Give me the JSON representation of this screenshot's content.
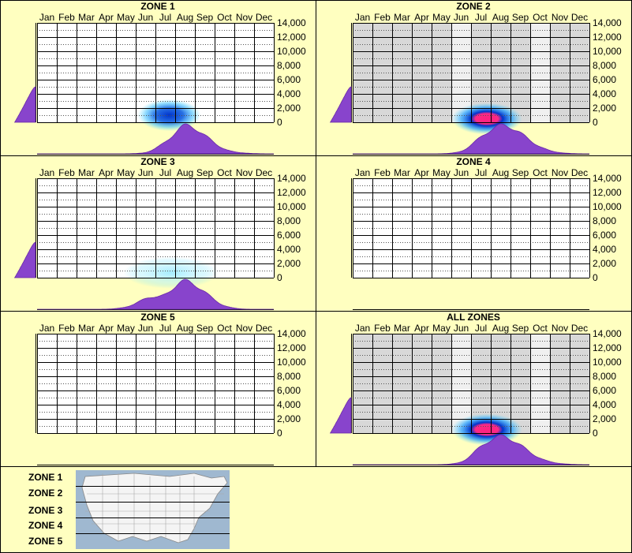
{
  "months": [
    "Jan",
    "Feb",
    "Mar",
    "Apr",
    "May",
    "Jun",
    "Jul",
    "Aug",
    "Sep",
    "Oct",
    "Nov",
    "Dec"
  ],
  "y_ticks": [
    0,
    2000,
    4000,
    6000,
    8000,
    10000,
    12000,
    14000
  ],
  "y_tick_labels": [
    "0",
    "2,000",
    "4,000",
    "6,000",
    "8,000",
    "10,000",
    "12,000",
    "14,000"
  ],
  "colors": {
    "background": "#ffffc0",
    "grid_bg_plain": "#ffffff",
    "grid_bg_shaded": "#d8d8d8",
    "grid_bg_light": "#f0f0f0",
    "density_fill": "#8844cc",
    "heat_low": "#60e0ff",
    "heat_mid": "#0033cc",
    "heat_high": "#ff2080"
  },
  "chart_data": [
    {
      "type": "heatmap",
      "title": "ZONE 1",
      "x_labels": [
        "Jan",
        "Feb",
        "Mar",
        "Apr",
        "May",
        "Jun",
        "Jul",
        "Aug",
        "Sep",
        "Oct",
        "Nov",
        "Dec"
      ],
      "ylim": [
        0,
        14000
      ],
      "shaded_months": [],
      "hotspot": {
        "month": 7.2,
        "elevation": 1000,
        "intensity": 0.55,
        "spread_months": 1.6
      },
      "month_density": [
        0,
        0,
        0,
        0,
        0,
        0.02,
        0.35,
        1.0,
        0.6,
        0.12,
        0.02,
        0
      ],
      "elevation_density": [
        0.55,
        0.2,
        0.02,
        0,
        0,
        0,
        0,
        0
      ]
    },
    {
      "type": "heatmap",
      "title": "ZONE 2",
      "x_labels": [
        "Jan",
        "Feb",
        "Mar",
        "Apr",
        "May",
        "Jun",
        "Jul",
        "Aug",
        "Sep",
        "Oct",
        "Nov",
        "Dec"
      ],
      "ylim": [
        0,
        14000
      ],
      "shaded_months": [
        1,
        2,
        3,
        4,
        5,
        7,
        8,
        9,
        11,
        12
      ],
      "hotspot": {
        "month": 7.3,
        "elevation": 500,
        "intensity": 1.0,
        "spread_months": 1.8
      },
      "month_density": [
        0,
        0,
        0,
        0,
        0,
        0.05,
        0.55,
        1.0,
        0.7,
        0.2,
        0.03,
        0
      ],
      "elevation_density": [
        0.55,
        0.2,
        0.02,
        0,
        0,
        0,
        0,
        0
      ]
    },
    {
      "type": "heatmap",
      "title": "ZONE 3",
      "x_labels": [
        "Jan",
        "Feb",
        "Mar",
        "Apr",
        "May",
        "Jun",
        "Jul",
        "Aug",
        "Sep",
        "Oct",
        "Nov",
        "Dec"
      ],
      "ylim": [
        0,
        14000
      ],
      "shaded_months": [],
      "hotspot": {
        "month": 7.3,
        "elevation": 700,
        "intensity": 0.2,
        "spread_months": 2.4
      },
      "month_density": [
        0,
        0,
        0,
        0,
        0.05,
        0.35,
        0.45,
        1.0,
        0.55,
        0.08,
        0,
        0
      ],
      "elevation_density": [
        0.55,
        0.2,
        0.02,
        0,
        0,
        0,
        0,
        0
      ]
    },
    {
      "type": "heatmap",
      "title": "ZONE 4",
      "x_labels": [
        "Jan",
        "Feb",
        "Mar",
        "Apr",
        "May",
        "Jun",
        "Jul",
        "Aug",
        "Sep",
        "Oct",
        "Nov",
        "Dec"
      ],
      "ylim": [
        0,
        14000
      ],
      "shaded_months": [],
      "hotspot": null,
      "month_density": [],
      "elevation_density": []
    },
    {
      "type": "heatmap",
      "title": "ZONE 5",
      "x_labels": [
        "Jan",
        "Feb",
        "Mar",
        "Apr",
        "May",
        "Jun",
        "Jul",
        "Aug",
        "Sep",
        "Oct",
        "Nov",
        "Dec"
      ],
      "ylim": [
        0,
        14000
      ],
      "shaded_months": [],
      "hotspot": null,
      "month_density": [],
      "elevation_density": []
    },
    {
      "type": "heatmap",
      "title": "ALL ZONES",
      "x_labels": [
        "Jan",
        "Feb",
        "Mar",
        "Apr",
        "May",
        "Jun",
        "Jul",
        "Aug",
        "Sep",
        "Oct",
        "Nov",
        "Dec"
      ],
      "ylim": [
        0,
        14000
      ],
      "shaded_months": [
        1,
        2,
        3,
        4,
        5,
        7,
        8,
        9,
        11,
        12
      ],
      "hotspot": {
        "month": 7.3,
        "elevation": 500,
        "intensity": 1.0,
        "spread_months": 1.8
      },
      "month_density": [
        0,
        0,
        0,
        0,
        0,
        0.05,
        0.6,
        1.0,
        0.65,
        0.18,
        0.03,
        0
      ],
      "elevation_density": [
        0.55,
        0.2,
        0.02,
        0,
        0,
        0,
        0,
        0
      ]
    }
  ],
  "legend": {
    "zones": [
      "ZONE 1",
      "ZONE 2",
      "ZONE 3",
      "ZONE 4",
      "ZONE 5"
    ]
  }
}
